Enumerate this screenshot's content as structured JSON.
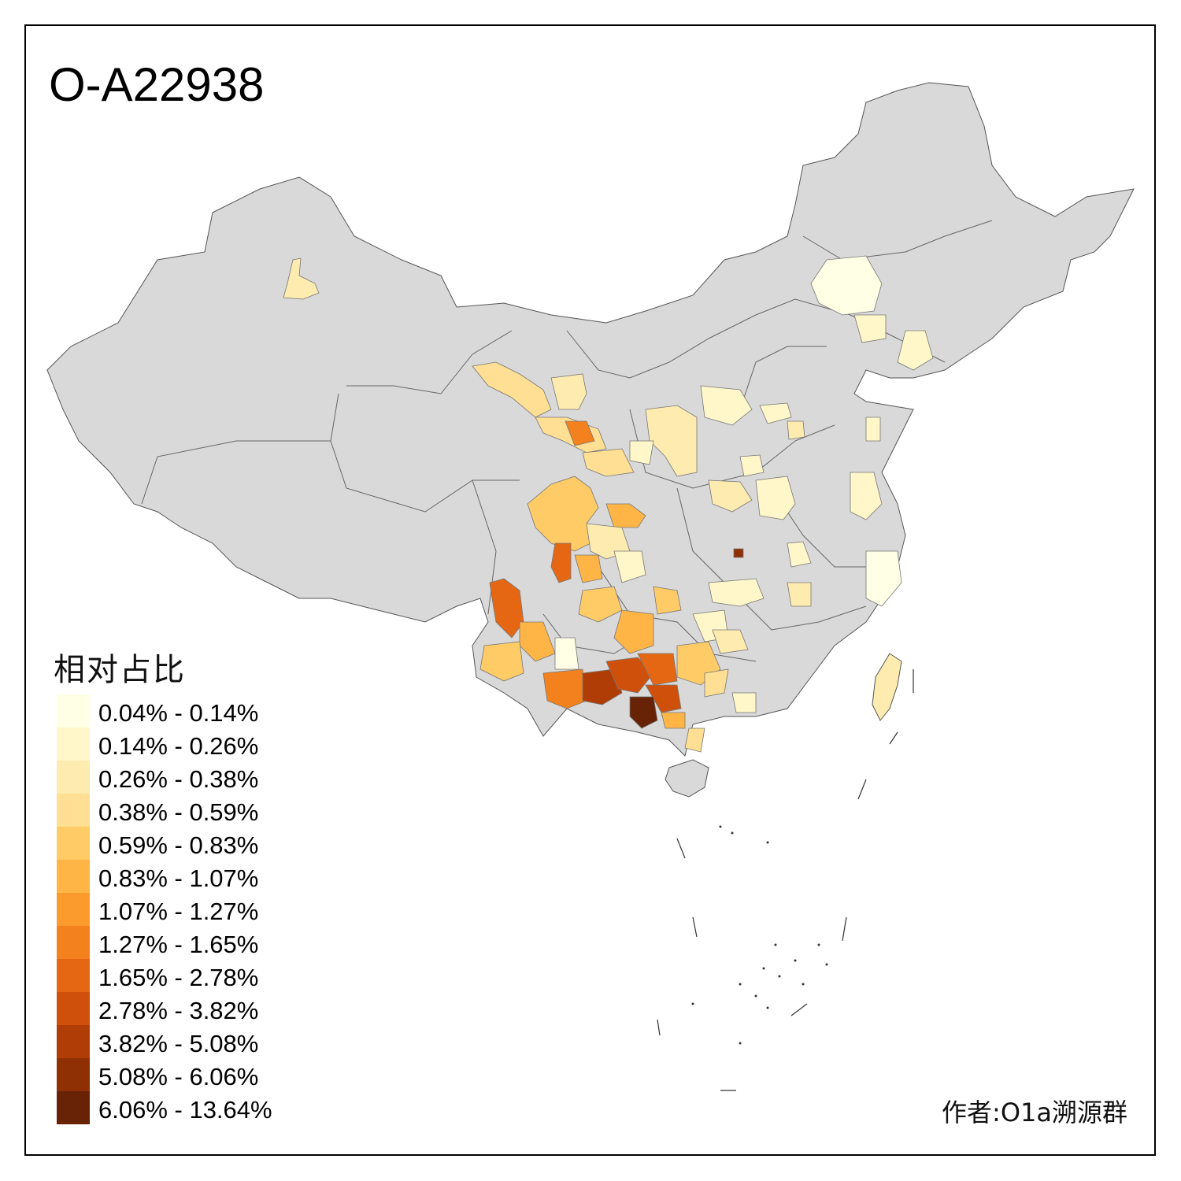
{
  "title": "O-A22938",
  "legend": {
    "title": "相对占比",
    "items": [
      {
        "label": "0.04% - 0.14%",
        "color": "#FFFFE5"
      },
      {
        "label": "0.14% - 0.26%",
        "color": "#FFF7C9"
      },
      {
        "label": "0.26% - 0.38%",
        "color": "#FEEBB0"
      },
      {
        "label": "0.38% - 0.59%",
        "color": "#FEDF93"
      },
      {
        "label": "0.59% - 0.83%",
        "color": "#FECB67"
      },
      {
        "label": "0.83% - 1.07%",
        "color": "#FEB546"
      },
      {
        "label": "1.07% - 1.27%",
        "color": "#FB9B2D"
      },
      {
        "label": "1.27% - 1.65%",
        "color": "#F3821E"
      },
      {
        "label": "1.65% - 2.78%",
        "color": "#E56713"
      },
      {
        "label": "2.78% - 3.82%",
        "color": "#CF500A"
      },
      {
        "label": "3.82% - 5.08%",
        "color": "#B03D05"
      },
      {
        "label": "5.08% - 6.06%",
        "color": "#8E3004"
      },
      {
        "label": "6.06% - 13.64%",
        "color": "#682206"
      }
    ]
  },
  "credit": "作者:O1a溯源群",
  "colors": {
    "no_data": "#D9D9D9",
    "border": "#555555"
  }
}
